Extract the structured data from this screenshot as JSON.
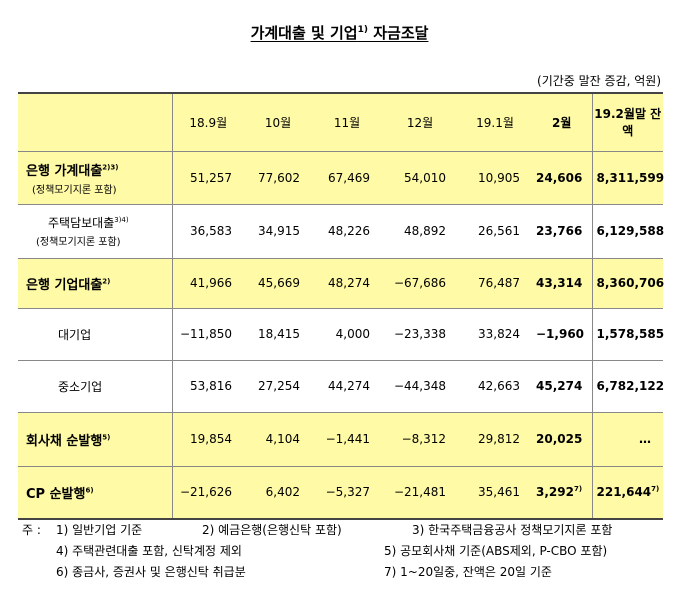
{
  "title": {
    "text": "가계대출 및 기업",
    "sup": "1)",
    "text2": " 자금조달"
  },
  "unit": "(기간중 말잔 증감, 억원)",
  "columns": [
    "18.9월",
    "10월",
    "11월",
    "12월",
    "19.1월",
    "2월",
    "19.2월말 잔액"
  ],
  "rows": [
    {
      "label": "은행 가계대출",
      "label_sup": "2)3)",
      "sub": "(정책모기지론 포함)",
      "values": [
        "51,257",
        "77,602",
        "67,469",
        "54,010",
        "10,905",
        "24,606",
        "8,311,599"
      ],
      "value_sups": [
        "",
        "",
        "",
        "",
        "",
        "",
        ""
      ]
    },
    {
      "label": "주택담보대출",
      "label_sup": "3)4)",
      "sub": "(정책모기지론 포함)",
      "values": [
        "36,583",
        "34,915",
        "48,226",
        "48,892",
        "26,561",
        "23,766",
        "6,129,588"
      ],
      "value_sups": [
        "",
        "",
        "",
        "",
        "",
        "",
        ""
      ]
    },
    {
      "label": "은행 기업대출",
      "label_sup": "2)",
      "sub": "",
      "values": [
        "41,966",
        "45,669",
        "48,274",
        "−67,686",
        "76,487",
        "43,314",
        "8,360,706"
      ],
      "value_sups": [
        "",
        "",
        "",
        "",
        "",
        "",
        ""
      ]
    },
    {
      "label": "대기업",
      "label_sup": "",
      "sub": "",
      "values": [
        "−11,850",
        "18,415",
        "4,000",
        "−23,338",
        "33,824",
        "−1,960",
        "1,578,585"
      ],
      "value_sups": [
        "",
        "",
        "",
        "",
        "",
        "",
        ""
      ]
    },
    {
      "label": "중소기업",
      "label_sup": "",
      "sub": "",
      "values": [
        "53,816",
        "27,254",
        "44,274",
        "−44,348",
        "42,663",
        "45,274",
        "6,782,122"
      ],
      "value_sups": [
        "",
        "",
        "",
        "",
        "",
        "",
        ""
      ]
    },
    {
      "label": "회사채 순발행",
      "label_sup": "5)",
      "sub": "",
      "values": [
        "19,854",
        "4,104",
        "−1,441",
        "−8,312",
        "29,812",
        "20,025",
        "…"
      ],
      "value_sups": [
        "",
        "",
        "",
        "",
        "",
        "",
        ""
      ]
    },
    {
      "label": "CP 순발행",
      "label_sup": "6)",
      "sub": "",
      "values": [
        "−21,626",
        "6,402",
        "−5,327",
        "−21,481",
        "35,461",
        "3,292",
        "221,644"
      ],
      "value_sups": [
        "",
        "",
        "",
        "",
        "",
        "7)",
        "7)"
      ]
    }
  ],
  "notes": {
    "prefix": "주 :",
    "n1": "1) 일반기업 기준",
    "n2": "2) 예금은행(은행신탁 포함)",
    "n3": "3) 한국주택금융공사 정책모기지론 포함",
    "n4": "4) 주택관련대출 포함, 신탁계정 제외",
    "n5": "5) 공모회사채 기준(ABS제외, P-CBO 포함)",
    "n6": "6) 종금사, 증권사 및 은행신탁 취급분",
    "n7": "7) 1~20일중, 잔액은 20일 기준"
  },
  "colors": {
    "highlight": "#fffaa6",
    "border": "#888888"
  }
}
